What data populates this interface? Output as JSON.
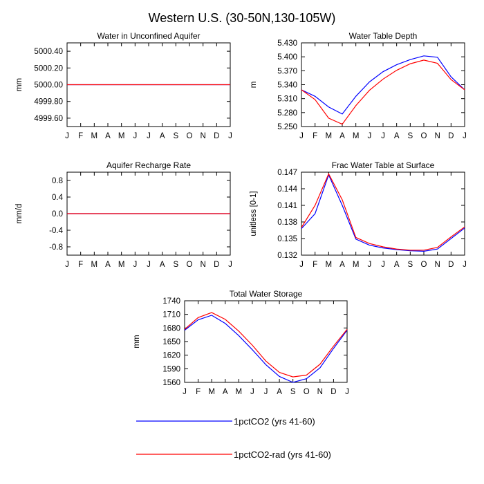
{
  "title": "Western U.S. (30-50N,130-105W)",
  "months": [
    "J",
    "F",
    "M",
    "A",
    "M",
    "J",
    "J",
    "A",
    "S",
    "O",
    "N",
    "D",
    "J"
  ],
  "legend": [
    {
      "label": "1pctCO2 (yrs 41-60)",
      "color": "#0000ff"
    },
    {
      "label": "1pctCO2-rad (yrs 41-60)",
      "color": "#ff0000"
    }
  ],
  "chart_data": [
    {
      "type": "line",
      "title": "Water in Unconfined Aquifer",
      "ylabel": "mm",
      "ylim": [
        4999.5,
        5000.5
      ],
      "yticks": [
        4999.6,
        4999.8,
        5000.0,
        5000.2,
        5000.4
      ],
      "yticklabels": [
        "4999.60",
        "4999.80",
        "5000.00",
        "5000.20",
        "5000.40"
      ],
      "categories": [
        "J",
        "F",
        "M",
        "A",
        "M",
        "J",
        "J",
        "A",
        "S",
        "O",
        "N",
        "D",
        "J"
      ],
      "series": [
        {
          "name": "1pctCO2 (yrs 41-60)",
          "color": "#0000ff",
          "values": [
            5000,
            5000,
            5000,
            5000,
            5000,
            5000,
            5000,
            5000,
            5000,
            5000,
            5000,
            5000,
            5000
          ]
        },
        {
          "name": "1pctCO2-rad (yrs 41-60)",
          "color": "#ff0000",
          "values": [
            5000,
            5000,
            5000,
            5000,
            5000,
            5000,
            5000,
            5000,
            5000,
            5000,
            5000,
            5000,
            5000
          ]
        }
      ]
    },
    {
      "type": "line",
      "title": "Water Table Depth",
      "ylabel": "m",
      "ylim": [
        5.25,
        5.43
      ],
      "yticks": [
        5.25,
        5.28,
        5.31,
        5.34,
        5.37,
        5.4,
        5.43
      ],
      "yticklabels": [
        "5.250",
        "5.280",
        "5.310",
        "5.340",
        "5.370",
        "5.400",
        "5.430"
      ],
      "categories": [
        "J",
        "F",
        "M",
        "A",
        "M",
        "J",
        "J",
        "A",
        "S",
        "O",
        "N",
        "D",
        "J"
      ],
      "series": [
        {
          "name": "1pctCO2 (yrs 41-60)",
          "color": "#0000ff",
          "values": [
            5.329,
            5.315,
            5.292,
            5.277,
            5.315,
            5.346,
            5.368,
            5.383,
            5.394,
            5.402,
            5.399,
            5.357,
            5.329
          ]
        },
        {
          "name": "1pctCO2-rad (yrs 41-60)",
          "color": "#ff0000",
          "values": [
            5.329,
            5.308,
            5.268,
            5.255,
            5.295,
            5.328,
            5.352,
            5.371,
            5.385,
            5.393,
            5.386,
            5.351,
            5.329
          ]
        }
      ]
    },
    {
      "type": "line",
      "title": "Aquifer Recharge Rate",
      "ylabel": "mm/d",
      "ylim": [
        -1.0,
        1.0
      ],
      "yticks": [
        -0.8,
        -0.4,
        0.0,
        0.4,
        0.8
      ],
      "yticklabels": [
        "-0.8",
        "-0.4",
        "0.0",
        "0.4",
        "0.8"
      ],
      "categories": [
        "J",
        "F",
        "M",
        "A",
        "M",
        "J",
        "J",
        "A",
        "S",
        "O",
        "N",
        "D",
        "J"
      ],
      "series": [
        {
          "name": "1pctCO2 (yrs 41-60)",
          "color": "#0000ff",
          "values": [
            0,
            0,
            0,
            0,
            0,
            0,
            0,
            0,
            0,
            0,
            0,
            0,
            0
          ]
        },
        {
          "name": "1pctCO2-rad (yrs 41-60)",
          "color": "#ff0000",
          "values": [
            0,
            0,
            0,
            0,
            0,
            0,
            0,
            0,
            0,
            0,
            0,
            0,
            0
          ]
        }
      ]
    },
    {
      "type": "line",
      "title": "Frac Water Table at Surface",
      "ylabel": "unitless [0-1]",
      "ylim": [
        0.132,
        0.147
      ],
      "yticks": [
        0.132,
        0.135,
        0.138,
        0.141,
        0.144,
        0.147
      ],
      "yticklabels": [
        "0.132",
        "0.135",
        "0.138",
        "0.141",
        "0.144",
        "0.147"
      ],
      "categories": [
        "J",
        "F",
        "M",
        "A",
        "M",
        "J",
        "J",
        "A",
        "S",
        "O",
        "N",
        "D",
        "J"
      ],
      "series": [
        {
          "name": "1pctCO2 (yrs 41-60)",
          "color": "#0000ff",
          "values": [
            0.1368,
            0.1395,
            0.1465,
            0.141,
            0.1349,
            0.1338,
            0.1333,
            0.133,
            0.1328,
            0.1327,
            0.1331,
            0.135,
            0.1369
          ]
        },
        {
          "name": "1pctCO2-rad (yrs 41-60)",
          "color": "#ff0000",
          "values": [
            0.137,
            0.141,
            0.1467,
            0.142,
            0.1352,
            0.1341,
            0.1335,
            0.1331,
            0.1329,
            0.1329,
            0.1334,
            0.1353,
            0.1371
          ]
        }
      ]
    },
    {
      "type": "line",
      "title": "Total Water Storage",
      "ylabel": "mm",
      "ylim": [
        1560,
        1740
      ],
      "yticks": [
        1560,
        1590,
        1620,
        1650,
        1680,
        1710,
        1740
      ],
      "yticklabels": [
        "1560",
        "1590",
        "1620",
        "1650",
        "1680",
        "1710",
        "1740"
      ],
      "categories": [
        "J",
        "F",
        "M",
        "A",
        "M",
        "J",
        "J",
        "A",
        "S",
        "O",
        "N",
        "D",
        "J"
      ],
      "series": [
        {
          "name": "1pctCO2 (yrs 41-60)",
          "color": "#0000ff",
          "values": [
            1675,
            1698,
            1708,
            1690,
            1663,
            1632,
            1599,
            1573,
            1560,
            1568,
            1592,
            1635,
            1675
          ]
        },
        {
          "name": "1pctCO2-rad (yrs 41-60)",
          "color": "#ff0000",
          "values": [
            1677,
            1703,
            1714,
            1699,
            1673,
            1642,
            1607,
            1582,
            1572,
            1576,
            1600,
            1640,
            1677
          ]
        }
      ]
    }
  ]
}
